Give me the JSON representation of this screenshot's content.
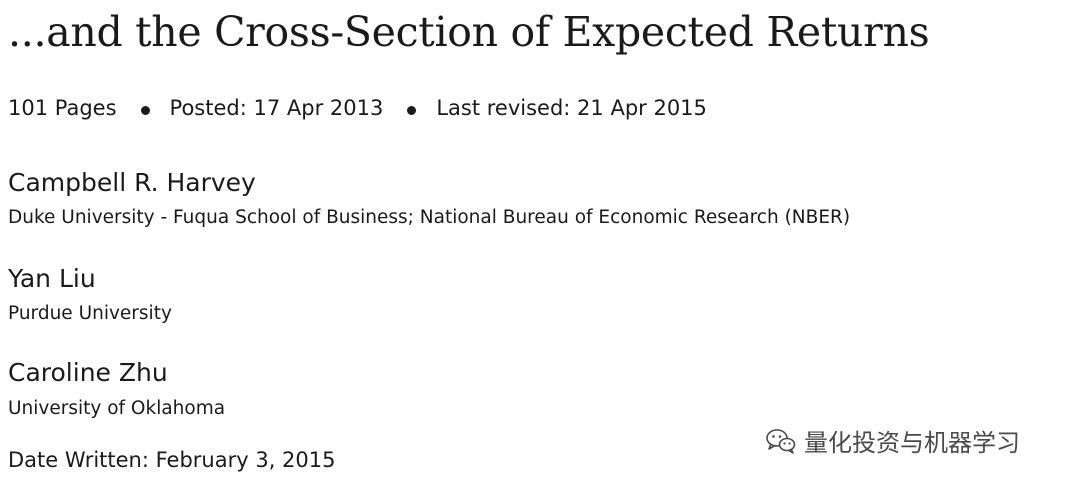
{
  "paper": {
    "title": "...and the Cross-Section of Expected Returns",
    "pages": "101 Pages",
    "posted": "Posted: 17 Apr 2013",
    "last_revised": "Last revised: 21 Apr 2015",
    "date_written": "Date Written: February 3, 2015"
  },
  "authors": [
    {
      "name": "Campbell R. Harvey",
      "affiliation": "Duke University - Fuqua School of Business; National Bureau of Economic Research (NBER)"
    },
    {
      "name": "Yan Liu",
      "affiliation": "Purdue University"
    },
    {
      "name": "Caroline Zhu",
      "affiliation": "University of Oklahoma"
    }
  ],
  "watermark": {
    "text": "量化投资与机器学习",
    "icon": "wechat-icon"
  }
}
